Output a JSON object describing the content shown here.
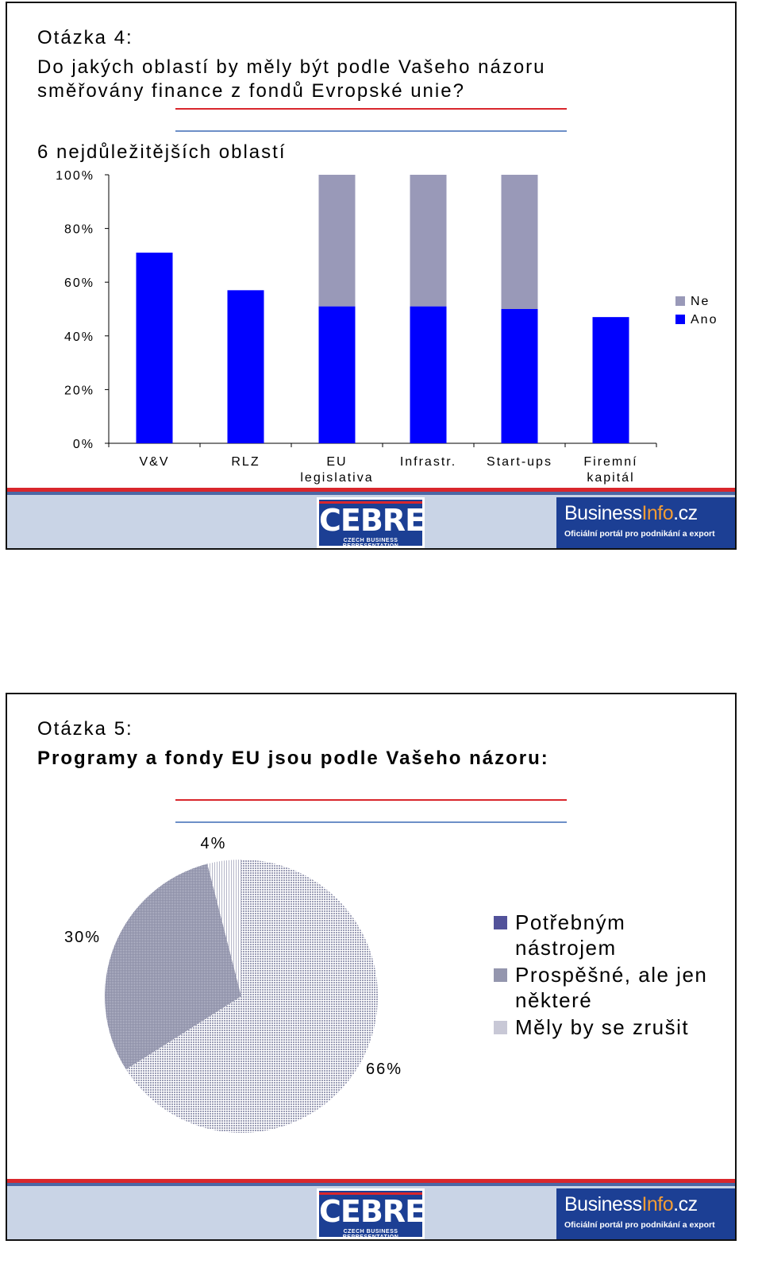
{
  "slide1": {
    "question_number": "Otázka 4:",
    "question_line1": "Do jakých oblastí by měly být podle Vašeho názoru",
    "question_line2": "směřovány finance z fondů Evropské unie?",
    "subtitle": "6 nejdůležitějších oblastí"
  },
  "slide2": {
    "question_number": "Otázka 5:",
    "question_text": "Programy a fondy EU jsou podle Vašeho názoru:"
  },
  "footer": {
    "cebre_name": "CEBRE",
    "cebre_sub": "CZECH BUSINESS REPRESENTATION",
    "bi_name_part1": "Business",
    "bi_name_part2": "Info",
    "bi_name_part3": ".cz",
    "bi_sub": "Oficiální portál pro podnikání a export"
  },
  "chart_data": [
    {
      "type": "bar",
      "stacked": true,
      "categories": [
        "V&V",
        "RLZ",
        "EU legislativa",
        "Infrastr.",
        "Start-ups",
        "Firemní kapitál"
      ],
      "category_lines": [
        [
          "V&V"
        ],
        [
          "RLZ"
        ],
        [
          "EU",
          "legislativa"
        ],
        [
          "Infrastr."
        ],
        [
          "Start-ups"
        ],
        [
          "Firemní",
          "kapitál"
        ]
      ],
      "series": [
        {
          "name": "Ano",
          "color": "#0000ff",
          "values": [
            71,
            57,
            51,
            51,
            50,
            47
          ]
        },
        {
          "name": "Ne",
          "color": "#9999b8",
          "values": [
            0,
            0,
            49,
            49,
            50,
            0
          ]
        }
      ],
      "ylim": [
        0,
        100
      ],
      "yticks": [
        0,
        20,
        40,
        60,
        80,
        100
      ],
      "ytick_labels": [
        "0%",
        "20%",
        "40%",
        "60%",
        "80%",
        "100%"
      ],
      "legend": [
        "Ne",
        "Ano"
      ],
      "legend_position": "right",
      "grid": false
    },
    {
      "type": "pie",
      "slices": [
        {
          "name": "Potřebným nástrojem",
          "value": 66,
          "label": "66%",
          "color": "#aeb0c6"
        },
        {
          "name": "Prospěšné, ale jen některé",
          "value": 30,
          "label": "30%",
          "color": "#9496ae"
        },
        {
          "name": "Měly by se zrušit",
          "value": 4,
          "label": "4%",
          "color": "#d7d8e4"
        }
      ],
      "legend_entries": [
        {
          "lines": [
            "Potřebným",
            "nástrojem"
          ],
          "color": "#52529a"
        },
        {
          "lines": [
            "Prospěšné, ale jen",
            "některé"
          ],
          "color": "#9496ae"
        },
        {
          "lines": [
            "Měly by se zrušit"
          ],
          "color": "#c8c8d6"
        }
      ],
      "legend_position": "right"
    }
  ]
}
